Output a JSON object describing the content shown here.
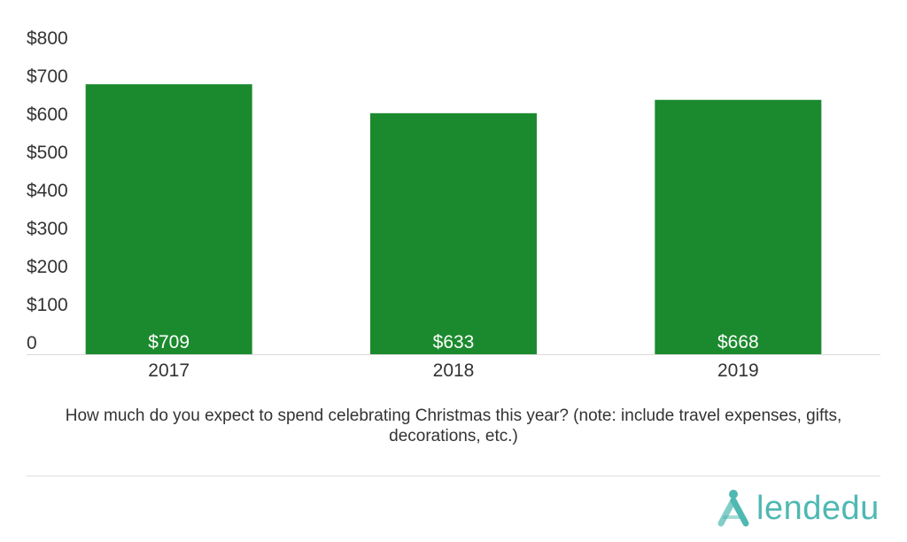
{
  "chart_data": {
    "type": "bar",
    "categories": [
      "2017",
      "2018",
      "2019"
    ],
    "values": [
      709,
      633,
      668
    ],
    "data_labels": [
      "$709",
      "$633",
      "$668"
    ],
    "ylim": [
      0,
      800
    ],
    "yticks": [
      0,
      100,
      200,
      300,
      400,
      500,
      600,
      700,
      800
    ],
    "ytick_labels": [
      "0",
      "$100",
      "$200",
      "$300",
      "$400",
      "$500",
      "$600",
      "$700",
      "$800"
    ],
    "bar_color": "#1b8a2e",
    "grid": false,
    "legend": "none"
  },
  "caption": "How much do you expect to spend celebrating Christmas this year? (note: include travel expenses, gifts, decorations, etc.)",
  "logo": {
    "text": "lendedu",
    "color": "#4fb8b2",
    "icon": "lendedu-logo-icon"
  }
}
